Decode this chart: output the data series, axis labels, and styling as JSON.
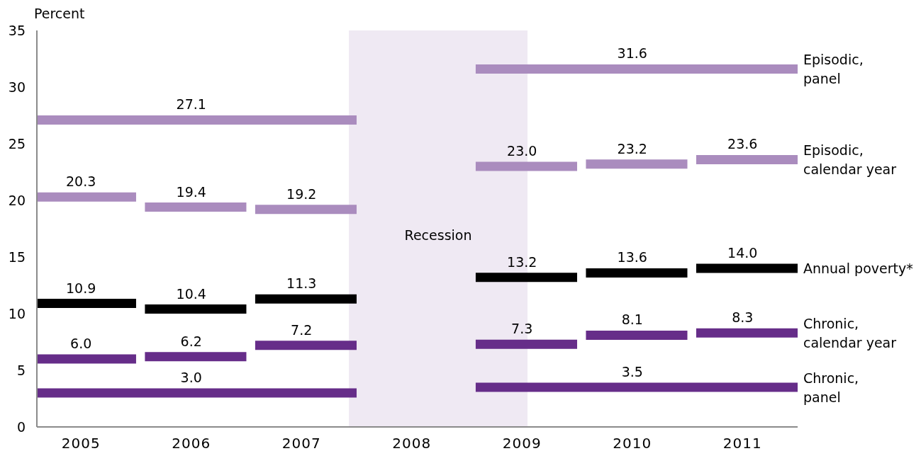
{
  "chart_data": {
    "type": "line",
    "ylabel": "Percent",
    "xlim": [
      2004.6,
      2011.5
    ],
    "xticks": [
      2005,
      2006,
      2007,
      2008,
      2009,
      2010,
      2011
    ],
    "ylim": [
      0,
      35
    ],
    "yticks": [
      0,
      5,
      10,
      15,
      20,
      25,
      30,
      35
    ],
    "marker": "none",
    "line_style": "solid",
    "bands": [
      {
        "axis": "x",
        "from": 2007.43,
        "to": 2009.05,
        "label": "Recession",
        "color": "#efe9f3"
      }
    ],
    "series": [
      {
        "name": "Episodic,\npanel",
        "color": "#aa8cbe",
        "x": [
          2004.6,
          2006,
          2007.5,
          2008,
          2008.58,
          2010,
          2011.5
        ],
        "values": [
          27.1,
          27.1,
          27.1,
          null,
          31.6,
          31.6,
          31.6
        ],
        "value_labels": [
          null,
          "27.1",
          null,
          null,
          null,
          "31.6",
          null
        ]
      },
      {
        "name": "Episodic,\ncalendar year",
        "color": "#aa8cbe",
        "x": [
          2004.6,
          2005,
          2005.5,
          2005.54,
          2005.58,
          2006,
          2006.5,
          2006.54,
          2006.58,
          2007,
          2007.5,
          2008,
          2008.58,
          2009,
          2009.5,
          2009.54,
          2009.58,
          2010,
          2010.5,
          2010.54,
          2010.58,
          2011,
          2011.5
        ],
        "values": [
          20.3,
          20.3,
          20.3,
          null,
          19.4,
          19.4,
          19.4,
          null,
          19.2,
          19.2,
          19.2,
          null,
          23.0,
          23.0,
          23.0,
          null,
          23.2,
          23.2,
          23.2,
          null,
          23.6,
          23.6,
          23.6
        ],
        "value_labels": [
          null,
          "20.3",
          null,
          null,
          null,
          "19.4",
          null,
          null,
          null,
          "19.2",
          null,
          null,
          null,
          "23.0",
          null,
          null,
          null,
          "23.2",
          null,
          null,
          null,
          "23.6",
          null
        ]
      },
      {
        "name": "Annual poverty*",
        "color": "#000000",
        "x": [
          2004.6,
          2005,
          2005.5,
          2005.54,
          2005.58,
          2006,
          2006.5,
          2006.54,
          2006.58,
          2007,
          2007.5,
          2008,
          2008.58,
          2009,
          2009.5,
          2009.54,
          2009.58,
          2010,
          2010.5,
          2010.54,
          2010.58,
          2011,
          2011.5
        ],
        "values": [
          10.9,
          10.9,
          10.9,
          null,
          10.4,
          10.4,
          10.4,
          null,
          11.3,
          11.3,
          11.3,
          null,
          13.2,
          13.2,
          13.2,
          null,
          13.6,
          13.6,
          13.6,
          null,
          14.0,
          14.0,
          14.0
        ],
        "value_labels": [
          null,
          "10.9",
          null,
          null,
          null,
          "10.4",
          null,
          null,
          null,
          "11.3",
          null,
          null,
          null,
          "13.2",
          null,
          null,
          null,
          "13.6",
          null,
          null,
          null,
          "14.0",
          null
        ]
      },
      {
        "name": "Chronic,\ncalendar year",
        "color": "#662d89",
        "x": [
          2004.6,
          2005,
          2005.5,
          2005.54,
          2005.58,
          2006,
          2006.5,
          2006.54,
          2006.58,
          2007,
          2007.5,
          2008,
          2008.58,
          2009,
          2009.5,
          2009.54,
          2009.58,
          2010,
          2010.5,
          2010.54,
          2010.58,
          2011,
          2011.5
        ],
        "values": [
          6.0,
          6.0,
          6.0,
          null,
          6.2,
          6.2,
          6.2,
          null,
          7.2,
          7.2,
          7.2,
          null,
          7.3,
          7.3,
          7.3,
          null,
          8.1,
          8.1,
          8.1,
          null,
          8.3,
          8.3,
          8.3
        ],
        "value_labels": [
          null,
          "6.0",
          null,
          null,
          null,
          "6.2",
          null,
          null,
          null,
          "7.2",
          null,
          null,
          null,
          "7.3",
          null,
          null,
          null,
          "8.1",
          null,
          null,
          null,
          "8.3",
          null
        ]
      },
      {
        "name": "Chronic,\npanel",
        "color": "#662d89",
        "x": [
          2004.6,
          2006,
          2007.5,
          2008,
          2008.58,
          2010,
          2011.5
        ],
        "values": [
          3.0,
          3.0,
          3.0,
          null,
          3.5,
          3.5,
          3.5
        ],
        "value_labels": [
          null,
          "3.0",
          null,
          null,
          null,
          "3.5",
          null
        ]
      }
    ]
  }
}
